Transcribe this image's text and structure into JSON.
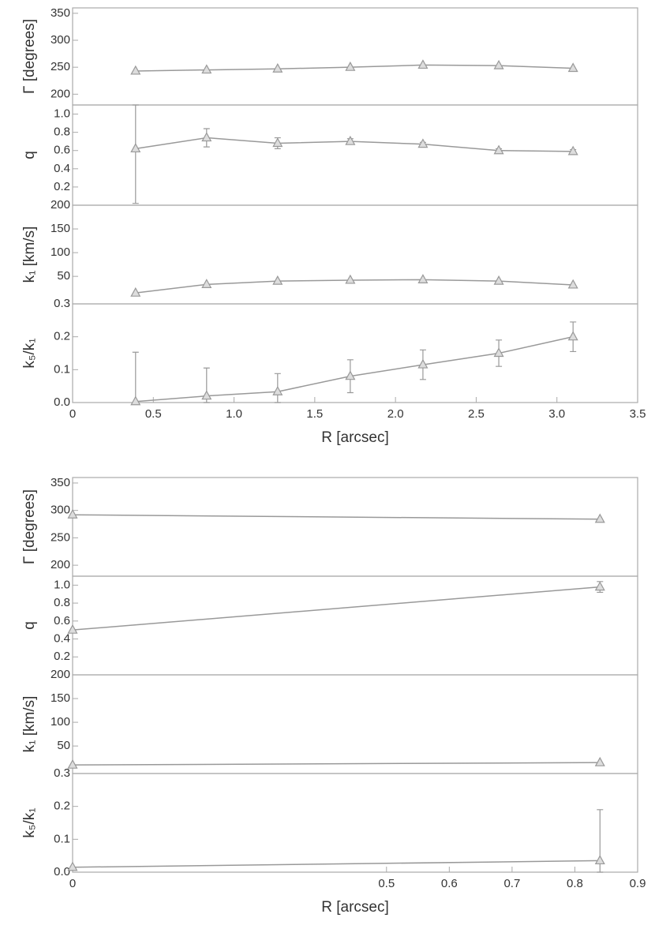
{
  "chart_data": [
    {
      "type": "line",
      "ylabel": "Γ [degrees]",
      "x": [
        0.39,
        0.83,
        1.27,
        1.72,
        2.17,
        2.64,
        3.1
      ],
      "values": [
        243,
        245,
        247,
        250,
        254,
        253,
        248
      ],
      "xlim": [
        0,
        3.5
      ],
      "ylim": [
        180,
        360
      ],
      "yticks": [
        200,
        250,
        300,
        350
      ],
      "color": "#999999"
    },
    {
      "type": "line",
      "ylabel": "q",
      "x": [
        0.39,
        0.83,
        1.27,
        1.72,
        2.17,
        2.64,
        3.1
      ],
      "values": [
        0.62,
        0.74,
        0.68,
        0.7,
        0.67,
        0.6,
        0.59
      ],
      "errors": [
        0.6,
        0.1,
        0.06,
        0.03,
        0.02,
        0.02,
        0.02
      ],
      "xlim": [
        0,
        3.5
      ],
      "ylim": [
        0,
        1.1
      ],
      "yticks": [
        0.2,
        0.4,
        0.6,
        0.8,
        {
          "value": 1,
          "label": "1.0"
        }
      ],
      "color": "#999999"
    },
    {
      "type": "line",
      "ylabel": "k₁ [km/s]",
      "x": [
        0.39,
        0.83,
        1.27,
        1.72,
        2.17,
        2.64,
        3.1
      ],
      "values": [
        15,
        33,
        40,
        42,
        43,
        40,
        32
      ],
      "xlim": [
        0,
        3.5
      ],
      "ylim": [
        -8,
        200
      ],
      "yticks": [
        50,
        100,
        150,
        200
      ],
      "color": "#999999"
    },
    {
      "type": "line",
      "ylabel": "k₅/k₁",
      "xlabel": "R [arcsec]",
      "x": [
        0.39,
        0.83,
        1.27,
        1.72,
        2.17,
        2.64,
        3.1
      ],
      "values": [
        0.003,
        0.02,
        0.033,
        0.08,
        0.115,
        0.15,
        0.2
      ],
      "errors": [
        0.15,
        0.085,
        0.055,
        0.05,
        0.045,
        0.04,
        0.045
      ],
      "xlim": [
        0,
        3.5
      ],
      "xticks": [
        0,
        0.5,
        {
          "value": 1,
          "label": "1.0"
        },
        1.5,
        {
          "value": 2,
          "label": "2.0"
        },
        2.5,
        {
          "value": 3,
          "label": "3.0"
        },
        3.5
      ],
      "ylim": [
        0,
        0.3
      ],
      "yticks": [
        {
          "value": 0,
          "label": "0.0"
        },
        0.1,
        0.2,
        0.3
      ],
      "color": "#999999"
    },
    {
      "type": "line",
      "ylabel": "Γ [degrees]",
      "x": [
        0,
        0.84
      ],
      "values": [
        292,
        284
      ],
      "xlim": [
        0,
        0.9
      ],
      "ylim": [
        180,
        360
      ],
      "yticks": [
        200,
        250,
        300,
        350
      ],
      "color": "#999999"
    },
    {
      "type": "line",
      "ylabel": "q",
      "x": [
        0,
        0.84
      ],
      "values": [
        0.5,
        0.98
      ],
      "errors": [
        null,
        0.06
      ],
      "xlim": [
        0,
        0.9
      ],
      "ylim": [
        0,
        1.1
      ],
      "yticks": [
        0.2,
        0.4,
        0.6,
        0.8,
        {
          "value": 1,
          "label": "1.0"
        }
      ],
      "color": "#999999"
    },
    {
      "type": "line",
      "ylabel": "k₁ [km/s]",
      "x": [
        0,
        0.84
      ],
      "values": [
        10,
        15
      ],
      "xlim": [
        0,
        0.9
      ],
      "ylim": [
        -8,
        200
      ],
      "yticks": [
        50,
        100,
        150,
        200
      ],
      "color": "#999999"
    },
    {
      "type": "line",
      "ylabel": "k₅/k₁",
      "xlabel": "R [arcsec]",
      "x": [
        0,
        0.84
      ],
      "values": [
        0.015,
        0.035
      ],
      "errors": [
        null,
        0.155
      ],
      "xlim": [
        0,
        0.9
      ],
      "xticks": [
        0,
        0.5,
        0.6,
        0.7,
        0.8,
        0.9
      ],
      "ylim": [
        0,
        0.3
      ],
      "yticks": [
        {
          "value": 0,
          "label": "0.0"
        },
        0.1,
        0.2,
        0.3
      ],
      "color": "#999999"
    }
  ]
}
